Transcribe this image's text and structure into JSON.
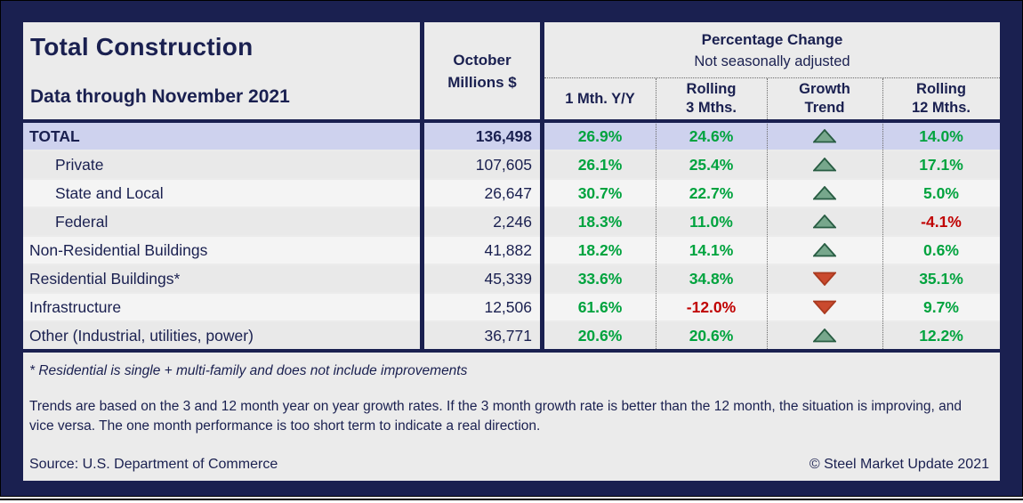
{
  "colors": {
    "navy": "#1a2050",
    "green": "#00a33e",
    "red": "#c00000",
    "panel_bg": "#ebebeb",
    "total_row_bg": "#ced2ee",
    "row_shade_a": "#e9e9e9",
    "row_shade_b": "#f4f4f4",
    "trend_up_fill": "#77a78c",
    "trend_up_border": "#275c42",
    "trend_down_fill": "#ca4a2e",
    "trend_down_border": "#a93a1f"
  },
  "chart_data": {
    "type": "table",
    "title": "Total Construction",
    "subtitle": "Data through November 2021",
    "value_column": {
      "line1": "October",
      "line2": "Millions $"
    },
    "group_header": {
      "title": "Percentage Change",
      "subtitle": "Not seasonally adjusted"
    },
    "pct_columns": [
      {
        "line1": "1 Mth. Y/Y",
        "line2": ""
      },
      {
        "line1": "Rolling",
        "line2": "3 Mths."
      },
      {
        "line1": "Growth",
        "line2": "Trend"
      },
      {
        "line1": "Rolling",
        "line2": "12 Mths."
      }
    ],
    "rows": [
      {
        "label": "TOTAL",
        "value": "136,498",
        "m1": "26.9%",
        "r3": "24.6%",
        "trend": "up",
        "r12": "14.0%"
      },
      {
        "label": "Private",
        "value": "107,605",
        "m1": "26.1%",
        "r3": "25.4%",
        "trend": "up",
        "r12": "17.1%"
      },
      {
        "label": "State and Local",
        "value": "26,647",
        "m1": "30.7%",
        "r3": "22.7%",
        "trend": "up",
        "r12": "5.0%"
      },
      {
        "label": "Federal",
        "value": "2,246",
        "m1": "18.3%",
        "r3": "11.0%",
        "trend": "up",
        "r12": "-4.1%"
      },
      {
        "label": "Non-Residential Buildings",
        "value": "41,882",
        "m1": "18.2%",
        "r3": "14.1%",
        "trend": "up",
        "r12": "0.6%"
      },
      {
        "label": "Residential Buildings*",
        "value": "45,339",
        "m1": "33.6%",
        "r3": "34.8%",
        "trend": "down",
        "r12": "35.1%"
      },
      {
        "label": "Infrastructure",
        "value": "12,506",
        "m1": "61.6%",
        "r3": "-12.0%",
        "trend": "down",
        "r12": "9.7%"
      },
      {
        "label": "Other (Industrial, utilities, power)",
        "value": "36,771",
        "m1": "20.6%",
        "r3": "20.6%",
        "trend": "up",
        "r12": "12.2%"
      }
    ]
  },
  "footer": {
    "footnote": "* Residential is single + multi-family and does not include improvements",
    "trends_note": "Trends are based on the 3 and 12 month year on year growth rates. If the 3 month growth rate is better than the 12 month, the situation is improving, and vice versa. The one month performance is too short term to indicate a real direction.",
    "source": "Source: U.S. Department of Commerce",
    "copyright": "© Steel Market Update 2021"
  }
}
